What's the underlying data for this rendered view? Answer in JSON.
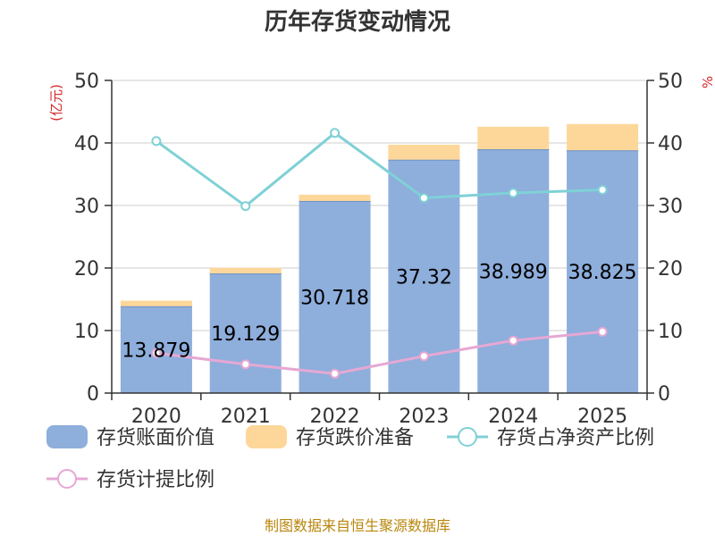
{
  "chart_data": {
    "type": "bar",
    "title": "历年存货变动情况",
    "categories": [
      "2020",
      "2021",
      "2022",
      "2023",
      "2024",
      "2025"
    ],
    "y_left_unit": "(亿元)",
    "y_right_unit": "%",
    "ylim_left": [
      0,
      50
    ],
    "ylim_right": [
      0,
      50
    ],
    "yticks": [
      "0",
      "10",
      "20",
      "30",
      "40",
      "50"
    ],
    "grid": true,
    "legend_position": "bottom",
    "stacked": true,
    "series": [
      {
        "name": "存货账面价值",
        "type": "bar",
        "axis": "left",
        "color": "#8eaedc",
        "values": [
          13.879,
          19.129,
          30.718,
          37.32,
          38.989,
          38.825
        ],
        "labels": [
          "13.879",
          "19.129",
          "30.718",
          "37.32",
          "38.989",
          "38.825"
        ]
      },
      {
        "name": "存货跌价准备",
        "type": "bar",
        "axis": "left",
        "color": "#fdd79a",
        "values": [
          0.9,
          0.9,
          1.0,
          2.4,
          3.6,
          4.2
        ]
      },
      {
        "name": "存货占净资产比例",
        "type": "line",
        "axis": "right",
        "color": "#7fd1d6",
        "values": [
          40.3,
          29.9,
          41.6,
          31.2,
          32.0,
          32.5
        ]
      },
      {
        "name": "存货计提比例",
        "type": "line",
        "axis": "right",
        "color": "#e6a8d4",
        "values": [
          6.4,
          4.6,
          3.1,
          5.9,
          8.4,
          9.8
        ]
      }
    ]
  },
  "source": "制图数据来自恒生聚源数据库"
}
